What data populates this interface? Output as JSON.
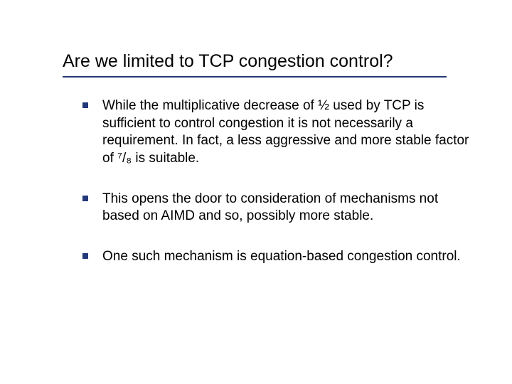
{
  "slide": {
    "title": "Are we limited to TCP congestion control?",
    "title_color": "#000000",
    "title_fontsize": 25,
    "underline_color": "#233878",
    "bullet_color": "#233878",
    "body_fontsize": 19,
    "body_color": "#000000",
    "background_color": "#ffffff",
    "bullets": [
      {
        "text": "While the multiplicative decrease of ½ used by TCP is sufficient to control congestion it is not necessarily a requirement.  In fact, a less aggressive and more stable factor of ⁷/₈ is suitable."
      },
      {
        "text": "This opens the door to consideration of mechanisms not based on AIMD and so, possibly more stable."
      },
      {
        "text": "One such mechanism is equation-based congestion control."
      }
    ]
  }
}
